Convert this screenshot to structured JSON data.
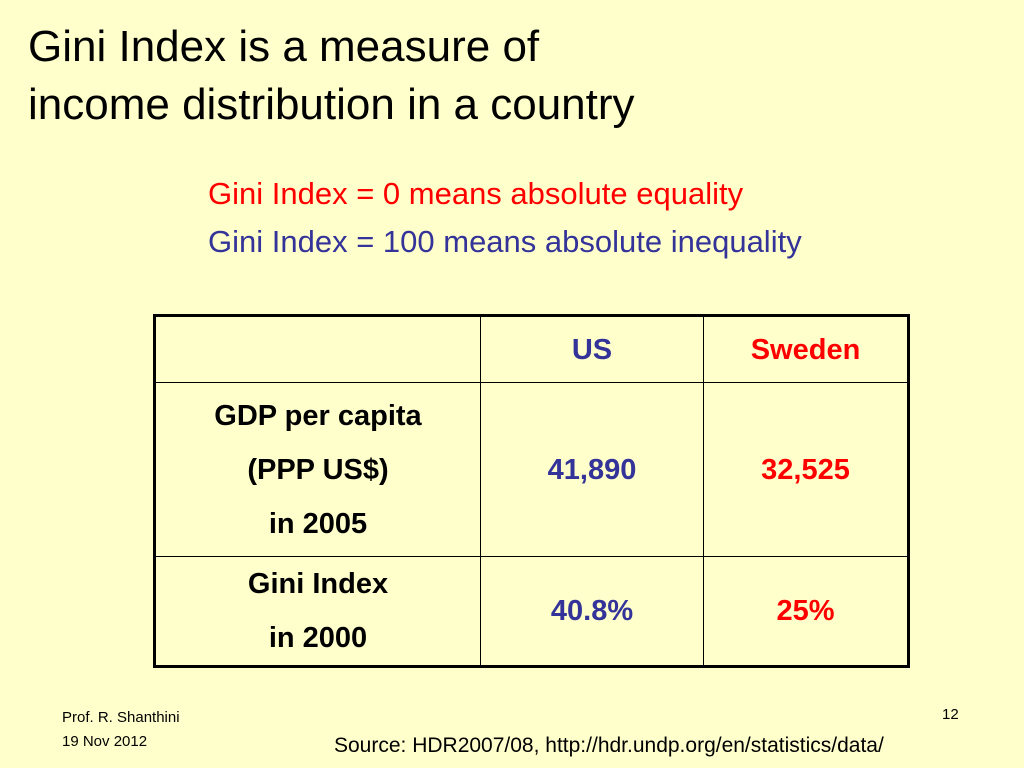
{
  "slide": {
    "title_line1": "Gini Index is a measure of",
    "title_line2": "income distribution in a country",
    "definition_zero": "Gini Index = 0 means absolute equality",
    "definition_hundred": "Gini Index = 100 means absolute inequality",
    "colors": {
      "background": "#ffffcc",
      "us": "#333399",
      "sweden": "#ff0000"
    }
  },
  "table": {
    "header": {
      "empty": "",
      "us": "US",
      "sweden": "Sweden"
    },
    "rows": [
      {
        "label_lines": [
          "GDP per capita",
          "(PPP US$)",
          "in 2005"
        ],
        "us": "41,890",
        "sweden": "32,525"
      },
      {
        "label_lines": [
          "Gini Index",
          "in 2000"
        ],
        "us": "40.8%",
        "sweden": "25%"
      }
    ]
  },
  "footer": {
    "author": "Prof. R. Shanthini",
    "date": "19 Nov 2012",
    "page_number": "12",
    "source": "Source: HDR2007/08, http://hdr.undp.org/en/statistics/data/"
  }
}
